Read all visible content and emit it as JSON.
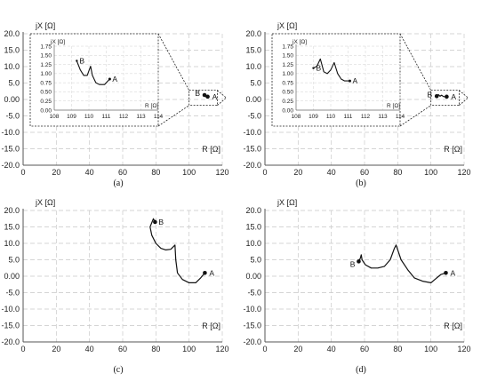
{
  "chart_data": [
    {
      "type": "line",
      "panel_label": "(a)",
      "xlabel": "R [Ω]",
      "ylabel": "jX [Ω]",
      "xlim": [
        0,
        120
      ],
      "ylim": [
        -20,
        20
      ],
      "xticks": [
        "0",
        "20",
        "40",
        "60",
        "80",
        "100",
        "120"
      ],
      "yticks": [
        "20.0",
        "15.0",
        "10.0",
        "5.0",
        "0.00",
        "-5.0",
        "-10.0",
        "-15.0",
        "-20.0"
      ],
      "grid": true,
      "series": [
        {
          "x": [
            109.3,
            109.6,
            109.9,
            110.2,
            110.6,
            110.9,
            111.2
          ],
          "y": [
            1.35,
            1.05,
            0.9,
            1.2,
            0.75,
            0.65,
            0.85
          ]
        }
      ],
      "points": [
        {
          "label": "B",
          "x": 109.3,
          "y": 1.35
        },
        {
          "label": "A",
          "x": 111.2,
          "y": 0.85
        }
      ],
      "inset": {
        "xlim": [
          108,
          114
        ],
        "ylim": [
          0,
          1.75
        ],
        "xticks": [
          "108",
          "109",
          "110",
          "111",
          "112",
          "113",
          "114"
        ],
        "yticks": [
          "1.75",
          "1.50",
          "1.25",
          "1.00",
          "0.75",
          "0.50",
          "0.25",
          "0.00"
        ],
        "xlabel": "R [Ω]",
        "ylabel": "jX [Ω]",
        "series": [
          {
            "x": [
              109.3,
              109.5,
              109.7,
              109.9,
              110.1,
              110.2,
              110.4,
              110.6,
              110.9,
              111.1,
              111.2
            ],
            "y": [
              1.35,
              1.1,
              0.95,
              0.95,
              1.2,
              0.95,
              0.75,
              0.7,
              0.7,
              0.8,
              0.85
            ]
          }
        ],
        "points": [
          {
            "label": "B",
            "x": 109.3,
            "y": 1.35
          },
          {
            "label": "A",
            "x": 111.2,
            "y": 0.85
          }
        ]
      }
    },
    {
      "type": "line",
      "panel_label": "(b)",
      "xlabel": "R [Ω]",
      "ylabel": "jX [Ω]",
      "xlim": [
        0,
        120
      ],
      "ylim": [
        -20,
        20
      ],
      "xticks": [
        "0",
        "20",
        "40",
        "60",
        "80",
        "100",
        "120"
      ],
      "yticks": [
        "20.0",
        "15.0",
        "10.0",
        "5.0",
        "0.00",
        "-5.0",
        "-10.0",
        "-15.0",
        "-20.0"
      ],
      "grid": true,
      "series": [
        {
          "x": [
            103.5,
            104.5,
            105.5,
            106.5,
            107.5,
            108.5,
            109.5
          ],
          "y": [
            1.0,
            1.45,
            1.0,
            1.3,
            0.9,
            0.85,
            0.85
          ]
        }
      ],
      "points": [
        {
          "label": "B",
          "x": 103.5,
          "y": 1.0
        },
        {
          "label": "A",
          "x": 109.5,
          "y": 0.85
        }
      ],
      "inset": {
        "xlim": [
          108,
          114
        ],
        "ylim": [
          0,
          1.75
        ],
        "xticks": [
          "108",
          "109",
          "110",
          "111",
          "112",
          "113",
          "114"
        ],
        "yticks": [
          "1.75",
          "1.50",
          "1.25",
          "1.00",
          "0.75",
          "0.50",
          "0.25",
          "0.00"
        ],
        "xlabel": "R [Ω]",
        "ylabel": "jX [Ω]",
        "series": [
          {
            "x": [
              109.0,
              109.2,
              109.4,
              109.6,
              109.8,
              110.0,
              110.2,
              110.4,
              110.6,
              110.8,
              111.1
            ],
            "y": [
              1.15,
              1.2,
              1.4,
              1.05,
              1.0,
              1.1,
              1.3,
              1.0,
              0.85,
              0.8,
              0.8
            ]
          }
        ],
        "points": [
          {
            "label": "B",
            "x": 109.0,
            "y": 1.15
          },
          {
            "label": "A",
            "x": 111.1,
            "y": 0.8
          }
        ]
      }
    },
    {
      "type": "line",
      "panel_label": "(c)",
      "xlabel": "R [Ω]",
      "ylabel": "jX [Ω]",
      "xlim": [
        0,
        120
      ],
      "ylim": [
        -20,
        20
      ],
      "xticks": [
        "0",
        "20",
        "40",
        "60",
        "80",
        "100",
        "120"
      ],
      "yticks": [
        "20.0",
        "15.0",
        "10.0",
        "5.0",
        "0.00",
        "-5.0",
        "-10.0",
        "-15.0",
        "-20.0"
      ],
      "grid": true,
      "series": [
        {
          "x": [
            79.5,
            78.5,
            76.5,
            77.5,
            80.0,
            83.0,
            86.0,
            89.0,
            91.5,
            92.0,
            93.0,
            96.0,
            100.0,
            104.0,
            107.0,
            109.5
          ],
          "y": [
            16.5,
            17.5,
            15.0,
            12.5,
            10.0,
            8.5,
            8.0,
            8.2,
            9.5,
            5.0,
            1.0,
            -1.0,
            -2.0,
            -2.0,
            -0.5,
            1.0
          ]
        }
      ],
      "points": [
        {
          "label": "B",
          "x": 79.5,
          "y": 16.5
        },
        {
          "label": "A",
          "x": 109.5,
          "y": 1.0
        }
      ]
    },
    {
      "type": "line",
      "panel_label": "(d)",
      "xlabel": "R [Ω]",
      "ylabel": "jX [Ω]",
      "xlim": [
        0,
        120
      ],
      "ylim": [
        -20,
        20
      ],
      "xticks": [
        "0",
        "20",
        "40",
        "60",
        "80",
        "100",
        "120"
      ],
      "yticks": [
        "20.0",
        "15.0",
        "10.0",
        "5.0",
        "0.00",
        "-5.0",
        "-10.0",
        "-15.0",
        "-20.0"
      ],
      "grid": true,
      "series": [
        {
          "x": [
            56.5,
            57.5,
            58.0,
            58.5,
            60.5,
            64.0,
            68.0,
            72.0,
            75.5,
            78.0,
            79.0,
            82.0,
            86.0,
            90.0,
            95.0,
            100.0,
            103.5,
            106.0,
            109.0
          ],
          "y": [
            4.5,
            5.5,
            6.5,
            5.0,
            3.5,
            2.5,
            2.5,
            3.0,
            5.0,
            8.5,
            9.5,
            5.0,
            2.0,
            -0.5,
            -1.5,
            -2.0,
            -0.5,
            0.5,
            1.0
          ]
        }
      ],
      "points": [
        {
          "label": "B",
          "x": 56.5,
          "y": 4.5
        },
        {
          "label": "A",
          "x": 109.0,
          "y": 1.0
        }
      ]
    }
  ]
}
